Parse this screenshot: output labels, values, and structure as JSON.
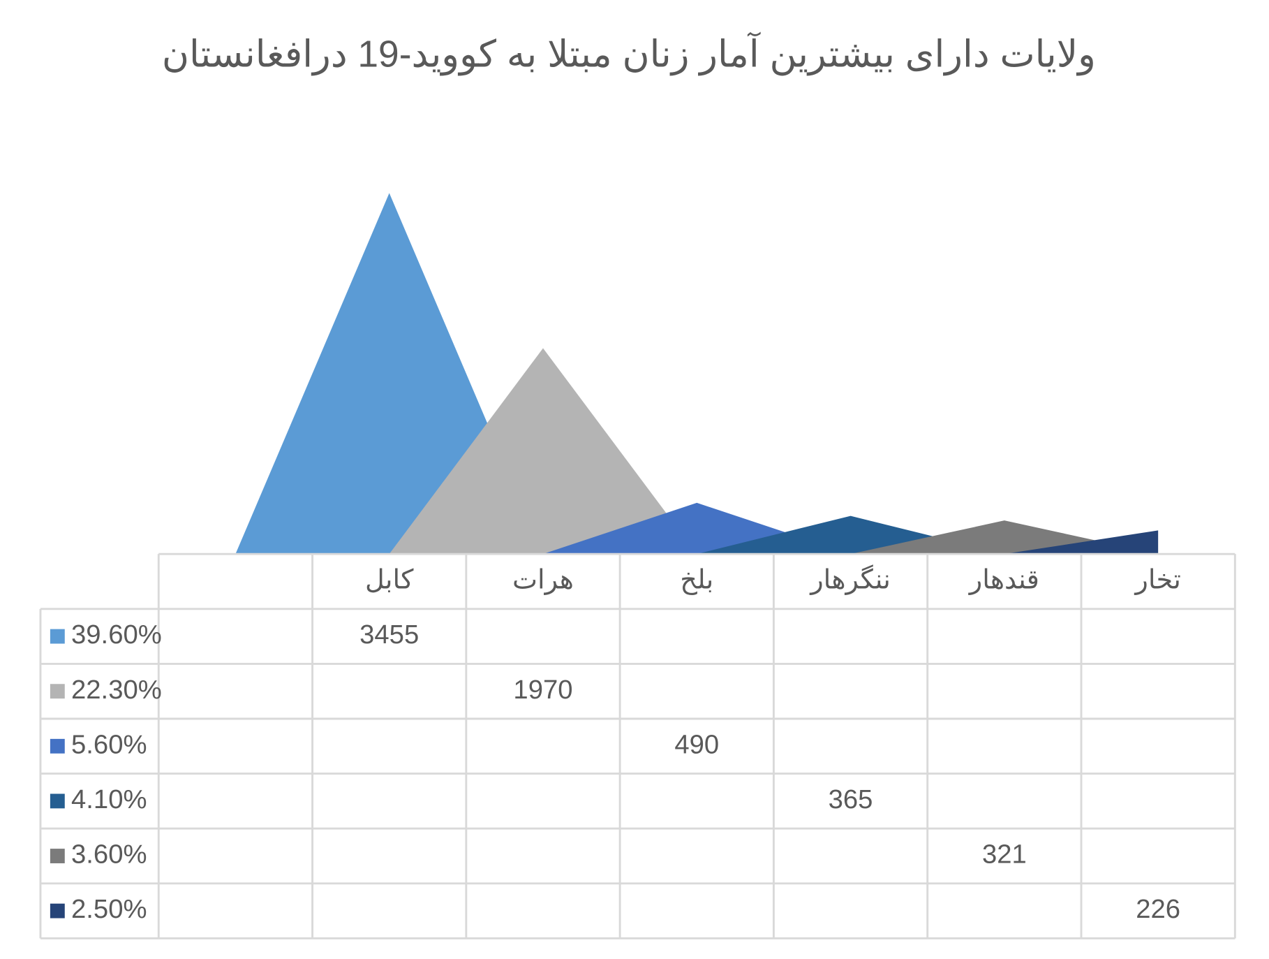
{
  "chart_data": {
    "type": "area",
    "title": "ولایات دارای بیشترین آمار زنان مبتلا به کووید-19 درافغانستان",
    "categories": [
      "کابل",
      "هرات",
      "بلخ",
      "ننگرهار",
      "قندهار",
      "تخار"
    ],
    "series": [
      {
        "name": "39.60%",
        "color": "#5b9bd5",
        "values": [
          3455,
          null,
          null,
          null,
          null,
          null
        ]
      },
      {
        "name": "22.30%",
        "color": "#b4b4b4",
        "values": [
          null,
          1970,
          null,
          null,
          null,
          null
        ]
      },
      {
        "name": "5.60%",
        "color": "#4472c4",
        "values": [
          null,
          null,
          490,
          null,
          null,
          null
        ]
      },
      {
        "name": "4.10%",
        "color": "#255e91",
        "values": [
          null,
          null,
          null,
          365,
          null,
          null
        ]
      },
      {
        "name": "3.60%",
        "color": "#7b7b7b",
        "values": [
          null,
          null,
          null,
          null,
          321,
          null
        ]
      },
      {
        "name": "2.50%",
        "color": "#264478",
        "values": [
          null,
          null,
          null,
          null,
          null,
          226
        ]
      }
    ],
    "ylim": [
      0,
      4000
    ],
    "data_table": true
  }
}
